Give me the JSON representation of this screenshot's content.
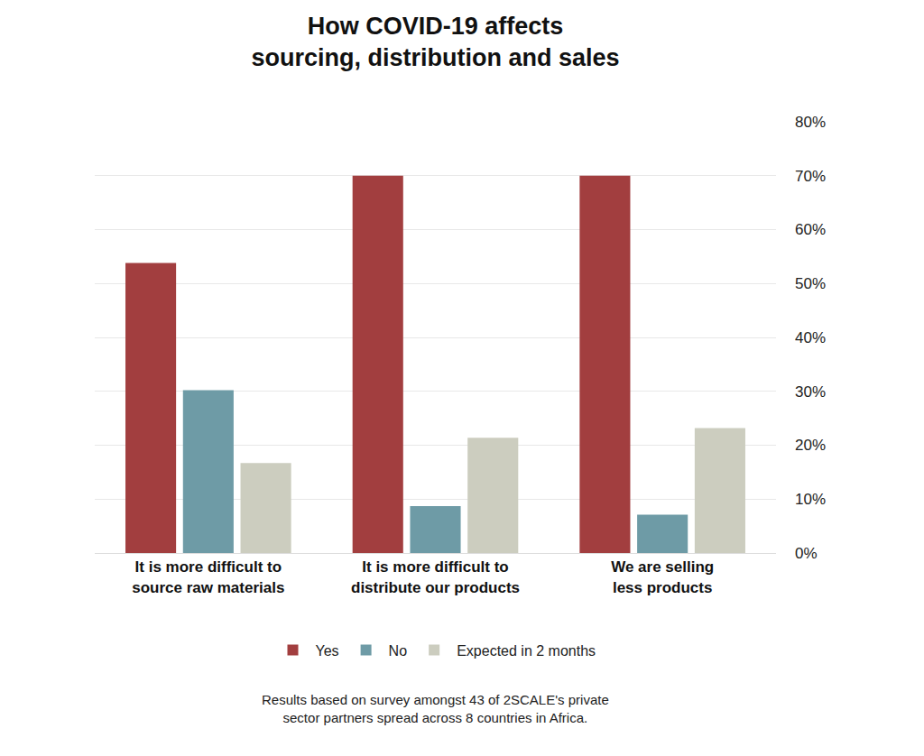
{
  "chart_data": {
    "type": "bar",
    "title": "How COVID-19 affects\nsourcing, distribution and sales",
    "categories": [
      "It is more difficult to\nsource raw materials",
      "It is more difficult to\ndistribute our products",
      "We are selling\nless products"
    ],
    "series": [
      {
        "name": "Yes",
        "color": "#a23e3f",
        "values": [
          53.8,
          70,
          70
        ]
      },
      {
        "name": "No",
        "color": "#6e9ba6",
        "values": [
          30.2,
          8.7,
          7.1
        ]
      },
      {
        "name": "Expected in 2 months",
        "color": "#cccdbf",
        "values": [
          16.7,
          21.4,
          23.2
        ]
      }
    ],
    "ylim": [
      0,
      80
    ],
    "yticks": [
      {
        "value": 0,
        "label": "0%"
      },
      {
        "value": 10,
        "label": "10%"
      },
      {
        "value": 20,
        "label": "20%"
      },
      {
        "value": 30,
        "label": "30%"
      },
      {
        "value": 40,
        "label": "40%"
      },
      {
        "value": 50,
        "label": "50%"
      },
      {
        "value": 60,
        "label": "60%"
      },
      {
        "value": 70,
        "label": "70%"
      },
      {
        "value": 80,
        "label": "80%"
      }
    ],
    "grid": true,
    "legend": "bottom",
    "annotations": [
      "Results based on survey amongst 43 of 2SCALE's private\nsector partners spread across 8 countries in Africa."
    ]
  }
}
